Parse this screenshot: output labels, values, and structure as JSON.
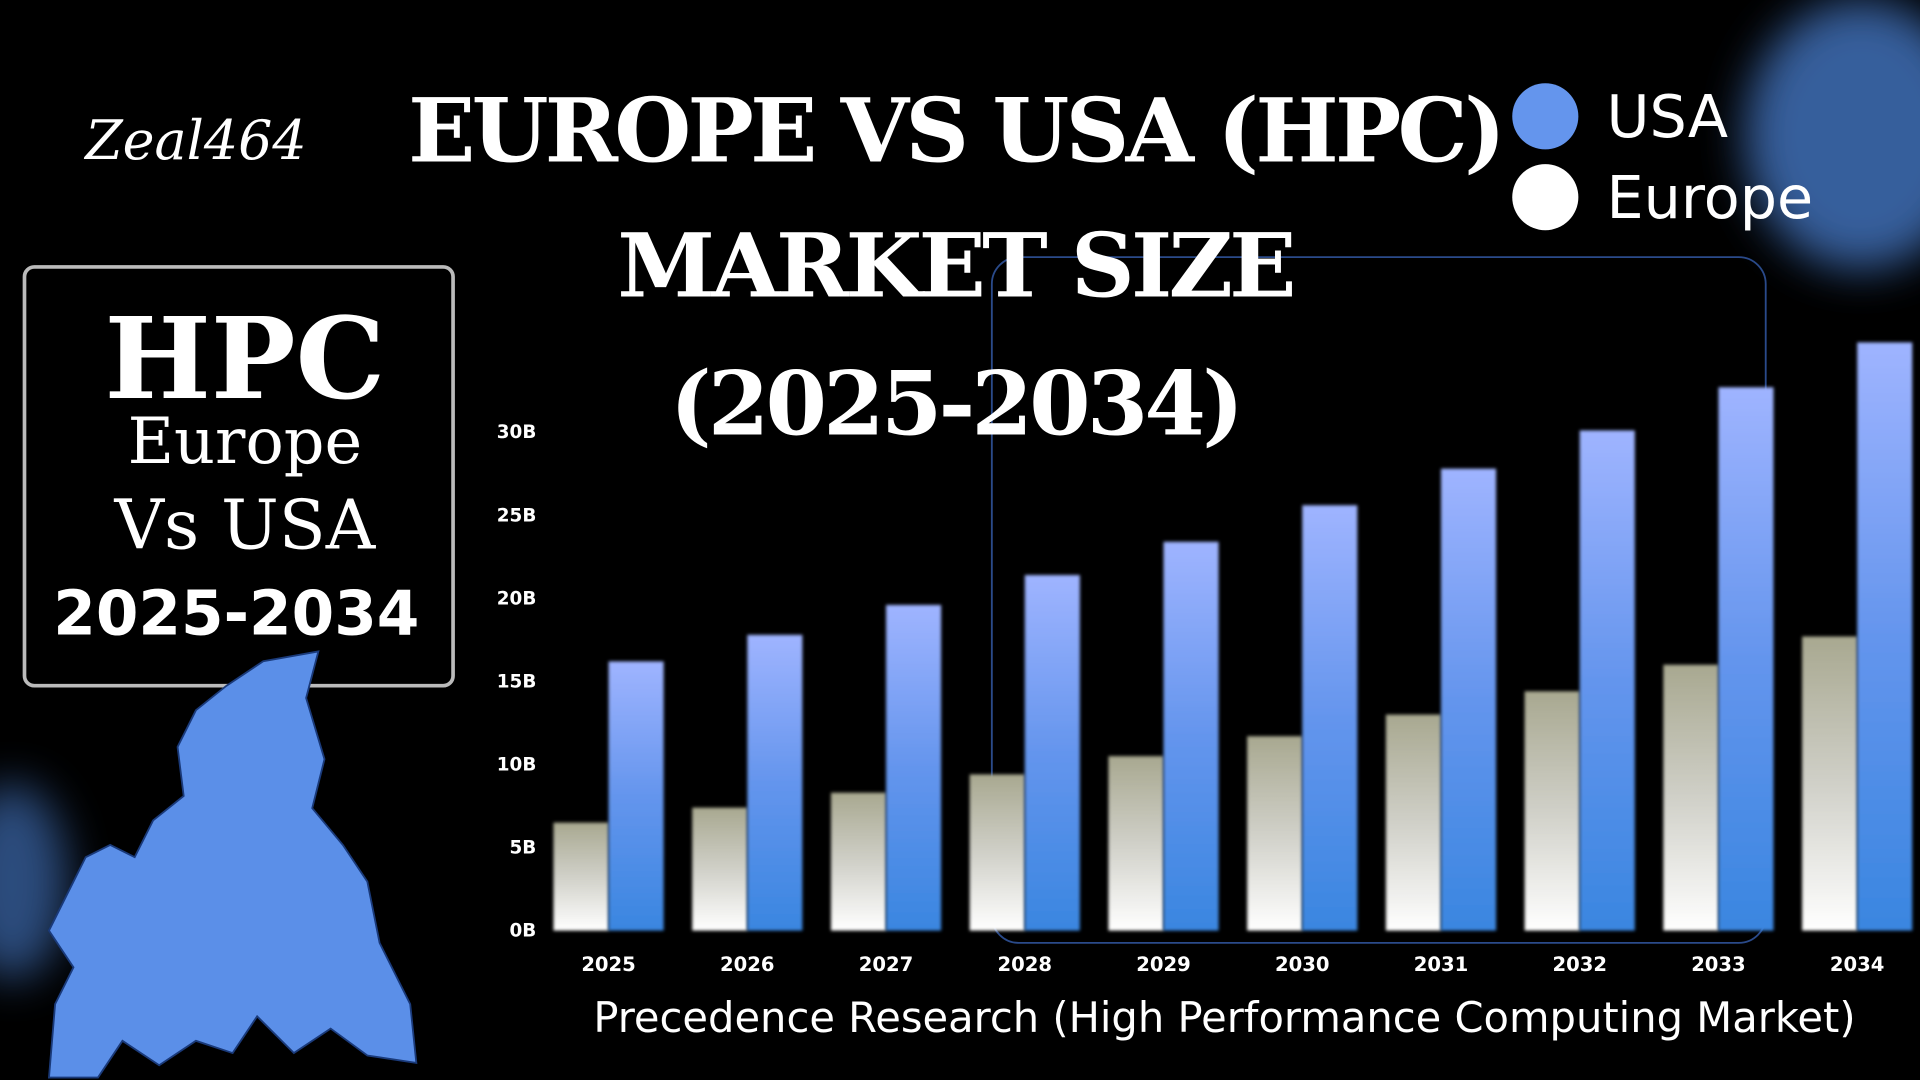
{
  "chart_data": {
    "type": "bar",
    "title": [
      "EUROPE VS USA (HPC)",
      "MARKET  SIZE",
      "(2025-2034)"
    ],
    "signature": "Zeal464",
    "side_box": [
      "HPC",
      "Europe",
      "Vs USA",
      "2025-2034"
    ],
    "source": "Precedence Research (High Performance Computing Market)",
    "categories": [
      "2025",
      "2026",
      "2027",
      "2028",
      "2029",
      "2030",
      "2031",
      "2032",
      "2033",
      "2034"
    ],
    "series": [
      {
        "name": "Europe",
        "color": "#ffffff",
        "values": [
          6.5,
          7.4,
          8.3,
          9.4,
          10.5,
          11.7,
          13.0,
          14.4,
          16.0,
          17.7
        ]
      },
      {
        "name": "USA",
        "color": "#6495ed",
        "values": [
          16.2,
          17.8,
          19.6,
          21.4,
          23.4,
          25.6,
          27.8,
          30.1,
          32.7,
          35.4
        ]
      }
    ],
    "legend_order": [
      1,
      0
    ],
    "ylim": [
      0,
      36
    ],
    "yticks": [
      {
        "value": 0,
        "label": "0B"
      },
      {
        "value": 5,
        "label": "5B"
      },
      {
        "value": 10,
        "label": "10B"
      },
      {
        "value": 15,
        "label": "15B"
      },
      {
        "value": 20,
        "label": "20B"
      },
      {
        "value": 25,
        "label": "25B"
      },
      {
        "value": 30,
        "label": "30B"
      }
    ],
    "grid": false
  }
}
